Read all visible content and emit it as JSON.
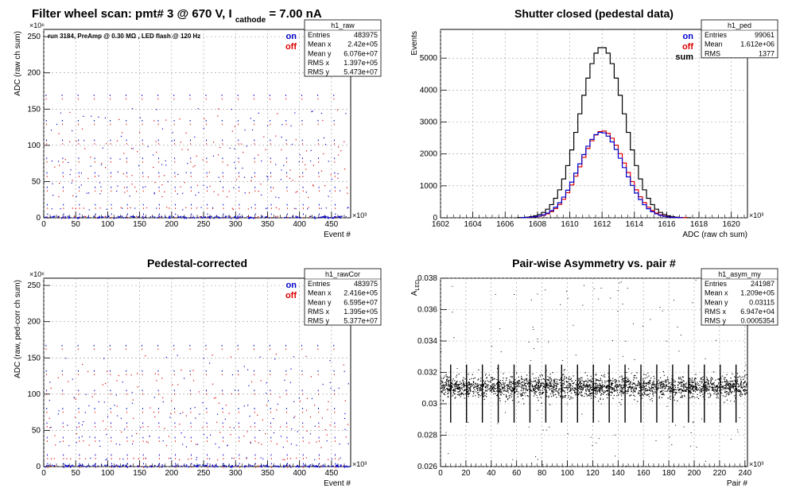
{
  "canvas_title": {
    "text_main": "Filter wheel scan: pmt#   3 @   670 V, I",
    "text_sub": "cathode",
    "text_tail": " = 7.00 nA"
  },
  "colors": {
    "on": "#0000cc",
    "off": "#dd0000",
    "sum": "#000000",
    "grid": "#999999"
  },
  "chart_data": [
    {
      "type": "scatter",
      "title": "",
      "xlabel": "Event #",
      "ylabel": "ADC (raw ch sum)",
      "x_exponent": "×10³",
      "y_exponent": "×10⁶",
      "xlim": [
        0,
        480
      ],
      "ylim": [
        0,
        260
      ],
      "xticks": [
        "0",
        "50",
        "100",
        "150",
        "200",
        "250",
        "300",
        "350",
        "400",
        "450"
      ],
      "yticks": [
        "0",
        "50",
        "100",
        "150",
        "200",
        "250"
      ],
      "annotation": "run 3184, PreAmp @ 0.30 MΩ , LED flash @  120 Hz",
      "legend": [
        {
          "label": "on",
          "color": "#0000cc"
        },
        {
          "label": "off",
          "color": "#dd0000"
        }
      ],
      "stats": {
        "name": "h1_raw",
        "rows": [
          {
            "k": "Entries",
            "v": "483975"
          },
          {
            "k": "Mean x",
            "v": "2.42e+05"
          },
          {
            "k": "Mean y",
            "v": "6.076e+07"
          },
          {
            "k": "RMS x",
            "v": "1.397e+05"
          },
          {
            "k": "RMS y",
            "v": "5.473e+07"
          }
        ]
      },
      "cycle": {
        "period": 25,
        "levels": [
          167,
          132,
          105,
          80,
          60,
          40,
          16,
          3
        ]
      }
    },
    {
      "type": "line",
      "title": "Shutter closed (pedestal data)",
      "xlabel": "ADC (raw ch sum)",
      "ylabel": "Events",
      "x_exponent": "×10³",
      "xlim": [
        1602,
        1621
      ],
      "ylim": [
        0,
        5900
      ],
      "xticks": [
        "1602",
        "1604",
        "1606",
        "1608",
        "1610",
        "1612",
        "1614",
        "1616",
        "1618",
        "1620"
      ],
      "yticks": [
        "0",
        "1000",
        "2000",
        "3000",
        "4000",
        "5000"
      ],
      "legend": [
        {
          "label": "on",
          "color": "#0000cc"
        },
        {
          "label": "off",
          "color": "#dd0000"
        },
        {
          "label": "sum",
          "color": "#000000"
        }
      ],
      "stats": {
        "name": "h1_ped",
        "rows": [
          {
            "k": "Entries",
            "v": "99061"
          },
          {
            "k": "Mean",
            "v": "1.612e+06"
          },
          {
            "k": "RMS",
            "v": "1377"
          }
        ]
      },
      "series": [
        {
          "name": "sum",
          "mean": 1612.0,
          "sigma": 1.38,
          "peak": 5350
        },
        {
          "name": "off",
          "mean": 1612.05,
          "sigma": 1.38,
          "peak": 2720
        },
        {
          "name": "on",
          "mean": 1611.95,
          "sigma": 1.38,
          "peak": 2680
        }
      ]
    },
    {
      "type": "scatter",
      "title": "Pedestal-corrected",
      "xlabel": "Event #",
      "ylabel": "ADC (raw, ped-corr ch sum)",
      "x_exponent": "×10³",
      "y_exponent": "×10⁶",
      "xlim": [
        0,
        480
      ],
      "ylim": [
        0,
        260
      ],
      "xticks": [
        "0",
        "50",
        "100",
        "150",
        "200",
        "250",
        "300",
        "350",
        "400",
        "450"
      ],
      "yticks": [
        "0",
        "50",
        "100",
        "150",
        "200",
        "250"
      ],
      "legend": [
        {
          "label": "on",
          "color": "#0000cc"
        },
        {
          "label": "off",
          "color": "#dd0000"
        }
      ],
      "stats": {
        "name": "h1_rawCor",
        "rows": [
          {
            "k": "Entries",
            "v": "483975"
          },
          {
            "k": "Mean x",
            "v": "2.416e+05"
          },
          {
            "k": "Mean y",
            "v": "6.595e+07"
          },
          {
            "k": "RMS x",
            "v": "1.395e+05"
          },
          {
            "k": "RMS y",
            "v": "5.377e+07"
          }
        ]
      },
      "cycle": {
        "period": 25,
        "levels": [
          165,
          130,
          103,
          78,
          58,
          38,
          14,
          2
        ]
      }
    },
    {
      "type": "scatter",
      "title": "Pair-wise Asymmetry vs. pair #",
      "xlabel": "Pair #",
      "ylabel": "A",
      "ylabel_sub": "LED",
      "x_exponent": "×10³",
      "xlim": [
        0,
        242
      ],
      "ylim": [
        0.026,
        0.038
      ],
      "xticks": [
        "0",
        "20",
        "40",
        "60",
        "80",
        "100",
        "120",
        "140",
        "160",
        "180",
        "200",
        "220",
        "240"
      ],
      "yticks": [
        "0.026",
        "0.028",
        "0.03",
        "0.032",
        "0.034",
        "0.036",
        "0.038"
      ],
      "stats": {
        "name": "h1_asym_my",
        "rows": [
          {
            "k": "Entries",
            "v": "241987"
          },
          {
            "k": "Mean x",
            "v": "1.209e+05"
          },
          {
            "k": "Mean y",
            "v": "0.03115"
          },
          {
            "k": "RMS x",
            "v": "6.947e+04"
          },
          {
            "k": "RMS y",
            "v": "0.0005354"
          }
        ]
      },
      "band": {
        "center": 0.0311,
        "halfwidth": 0.0006,
        "spike_period": 12.5,
        "spike_low": 0.0288,
        "spike_high": 0.0325
      }
    }
  ]
}
